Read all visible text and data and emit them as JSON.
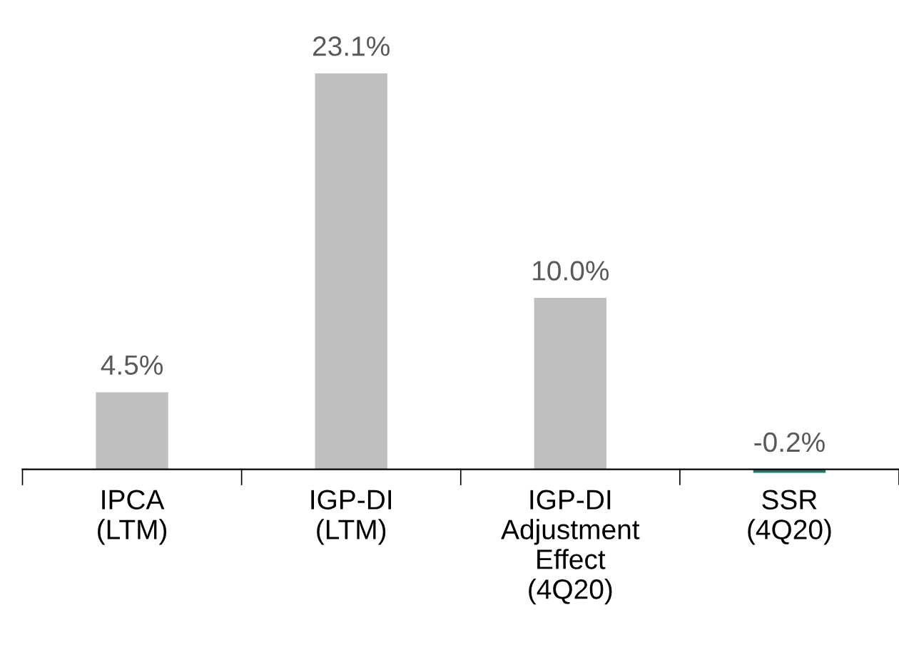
{
  "chart_data": {
    "type": "bar",
    "categories": [
      "IPCA\n(LTM)",
      "IGP-DI\n(LTM)",
      "IGP-DI\nAdjustment\nEffect\n(4Q20)",
      "SSR\n(4Q20)"
    ],
    "values": [
      4.5,
      23.1,
      10.0,
      -0.2
    ],
    "colors": [
      "#bfbfbf",
      "#bfbfbf",
      "#bfbfbf",
      "#1f7a6e"
    ],
    "value_labels": [
      "4.5%",
      "23.1%",
      "10.0%",
      "-0.2%"
    ],
    "grid": false,
    "legend": false
  }
}
